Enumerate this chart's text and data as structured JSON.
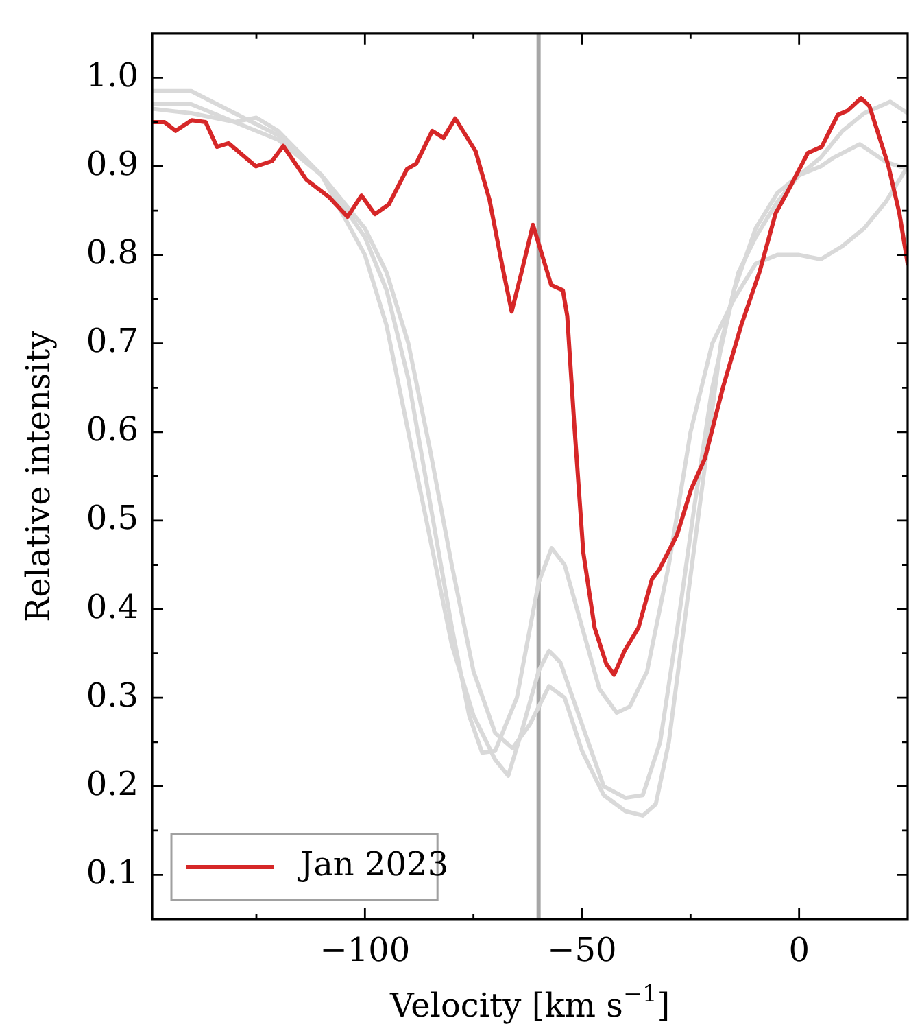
{
  "chart_data": {
    "type": "line",
    "xlabel": "Velocity [km s$^{−1}$]",
    "ylabel": "Relative intensity",
    "xlim": [
      -149,
      25
    ],
    "ylim": [
      0.05,
      1.05
    ],
    "xticks": [
      {
        "value": -125,
        "label": null
      },
      -100,
      {
        "value": -75,
        "label": null
      },
      -50,
      {
        "value": -25,
        "label": null
      },
      0
    ],
    "yticks": [
      0.1,
      {
        "value": 0.15,
        "label": null
      },
      0.2,
      {
        "value": 0.25,
        "label": null
      },
      0.3,
      {
        "value": 0.35,
        "label": null
      },
      0.4,
      {
        "value": 0.45,
        "label": null
      },
      0.5,
      {
        "value": 0.55,
        "label": null
      },
      0.6,
      {
        "value": 0.65,
        "label": null
      },
      0.7,
      {
        "value": 0.75,
        "label": null
      },
      0.8,
      {
        "value": 0.85,
        "label": null
      },
      0.9,
      {
        "value": 0.95,
        "label": null
      },
      {
        "value": 1,
        "label": "1.0"
      }
    ],
    "legend": "bottom left",
    "grid": false,
    "marker": "none",
    "line_style": "solid",
    "ref_lines": [
      {
        "axis": "x",
        "value": -60,
        "color": "#a6a6a6"
      }
    ],
    "series": [
      {
        "color": "#d9d9d9",
        "x": [
          -149,
          -140,
          -130,
          -120,
          -110,
          -100,
          -95,
          -90,
          -85,
          -80,
          -76,
          -73,
          -70,
          -65,
          -60,
          -57,
          -54,
          -50,
          -46,
          -42,
          -39,
          -35,
          -30,
          -25,
          -20,
          -15,
          -10,
          -5,
          0,
          5,
          10,
          15,
          20,
          25
        ],
        "values": [
          0.985,
          0.985,
          0.96,
          0.935,
          0.89,
          0.82,
          0.76,
          0.66,
          0.52,
          0.38,
          0.28,
          0.238,
          0.24,
          0.3,
          0.43,
          0.469,
          0.45,
          0.38,
          0.31,
          0.283,
          0.29,
          0.33,
          0.45,
          0.6,
          0.7,
          0.75,
          0.79,
          0.8,
          0.8,
          0.795,
          0.81,
          0.83,
          0.86,
          0.9
        ]
      },
      {
        "color": "#d9d9d9",
        "x": [
          -149,
          -140,
          -130,
          -125,
          -120,
          -110,
          -100,
          -95,
          -90,
          -85,
          -80,
          -75,
          -70,
          -67,
          -64,
          -60,
          -57.6,
          -55,
          -50,
          -45,
          -40,
          -36,
          -32,
          -28,
          -24,
          -20,
          -15,
          -10,
          -5,
          0,
          5,
          8,
          14,
          20,
          25
        ],
        "values": [
          0.97,
          0.97,
          0.95,
          0.955,
          0.94,
          0.89,
          0.8,
          0.72,
          0.6,
          0.48,
          0.36,
          0.28,
          0.23,
          0.212,
          0.26,
          0.33,
          0.353,
          0.34,
          0.27,
          0.2,
          0.187,
          0.19,
          0.25,
          0.38,
          0.52,
          0.65,
          0.76,
          0.83,
          0.87,
          0.89,
          0.9,
          0.91,
          0.925,
          0.905,
          0.897
        ]
      },
      {
        "color": "#d9d9d9",
        "x": [
          -149,
          -140,
          -130,
          -120,
          -110,
          -100,
          -95,
          -90,
          -85,
          -80,
          -75,
          -70,
          -66,
          -62,
          -57.6,
          -54,
          -50,
          -45,
          -40,
          -36,
          -33,
          -30,
          -26,
          -22,
          -18,
          -14,
          -10,
          -5,
          0,
          5,
          10,
          15,
          21,
          25
        ],
        "values": [
          0.965,
          0.96,
          0.95,
          0.93,
          0.89,
          0.83,
          0.78,
          0.7,
          0.58,
          0.45,
          0.33,
          0.26,
          0.243,
          0.27,
          0.313,
          0.3,
          0.24,
          0.19,
          0.172,
          0.167,
          0.18,
          0.25,
          0.4,
          0.55,
          0.7,
          0.78,
          0.82,
          0.86,
          0.89,
          0.91,
          0.94,
          0.96,
          0.973,
          0.96
        ]
      },
      {
        "name": "Jan 2023",
        "color": "#d62728",
        "x": [
          -148.8,
          -146.2,
          -143.6,
          -139.9,
          -136.7,
          -134.1,
          -131.4,
          -125.1,
          -121.4,
          -118.8,
          -113.5,
          -108.2,
          -104,
          -100.8,
          -97.7,
          -94.5,
          -90.3,
          -88.2,
          -84.5,
          -81.9,
          -79.2,
          -74.5,
          -71.3,
          -68.1,
          -66.2,
          -63.9,
          -61.3,
          -59.2,
          -57.1,
          -54.4,
          -53.4,
          -51.8,
          -49.7,
          -47.1,
          -44.4,
          -42.6,
          -40.2,
          -37,
          -33.9,
          -32.3,
          -28.1,
          -24.9,
          -21.7,
          -17.5,
          -13.3,
          -9.1,
          -5.4,
          -2.8,
          2,
          5.2,
          8.9,
          11.2,
          14.3,
          16.2,
          20.5,
          23.1,
          25
        ],
        "values": [
          0.95,
          0.95,
          0.94,
          0.952,
          0.95,
          0.922,
          0.926,
          0.9,
          0.906,
          0.923,
          0.885,
          0.865,
          0.843,
          0.867,
          0.846,
          0.857,
          0.897,
          0.903,
          0.94,
          0.932,
          0.954,
          0.917,
          0.862,
          0.781,
          0.736,
          0.781,
          0.834,
          0.8,
          0.766,
          0.76,
          0.731,
          0.61,
          0.464,
          0.379,
          0.338,
          0.326,
          0.353,
          0.379,
          0.434,
          0.444,
          0.484,
          0.535,
          0.57,
          0.651,
          0.721,
          0.781,
          0.847,
          0.87,
          0.915,
          0.922,
          0.958,
          0.963,
          0.977,
          0.968,
          0.902,
          0.847,
          0.79
        ]
      }
    ]
  }
}
